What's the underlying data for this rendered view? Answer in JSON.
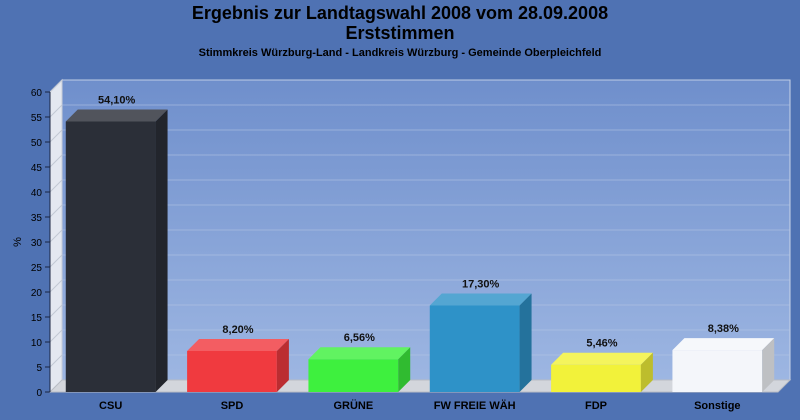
{
  "chart_data": {
    "type": "bar",
    "title": "Ergebnis zur Landtagswahl 2008 vom 28.09.2008",
    "subtitle": "Erststimmen",
    "caption": "Stimmkreis Würzburg-Land - Landkreis Würzburg - Gemeinde Oberpleichfeld",
    "ylabel": "%",
    "ylim": [
      0,
      60
    ],
    "yticks": [
      0,
      5,
      10,
      15,
      20,
      25,
      30,
      35,
      40,
      45,
      50,
      55,
      60
    ],
    "categories": [
      "CSU",
      "SPD",
      "GRÜNE",
      "FW FREIE WÄH",
      "FDP",
      "Sonstige"
    ],
    "values": [
      54.1,
      8.2,
      6.56,
      17.3,
      5.46,
      8.38
    ],
    "value_labels": [
      "54,10%",
      "8,20%",
      "6,56%",
      "17,30%",
      "5,46%",
      "8,38%"
    ],
    "colors": [
      "#2b2f38",
      "#f03a3f",
      "#3ef03e",
      "#2e92c8",
      "#f2f23a",
      "#f4f6fa"
    ],
    "grid": true,
    "legend": "none"
  }
}
